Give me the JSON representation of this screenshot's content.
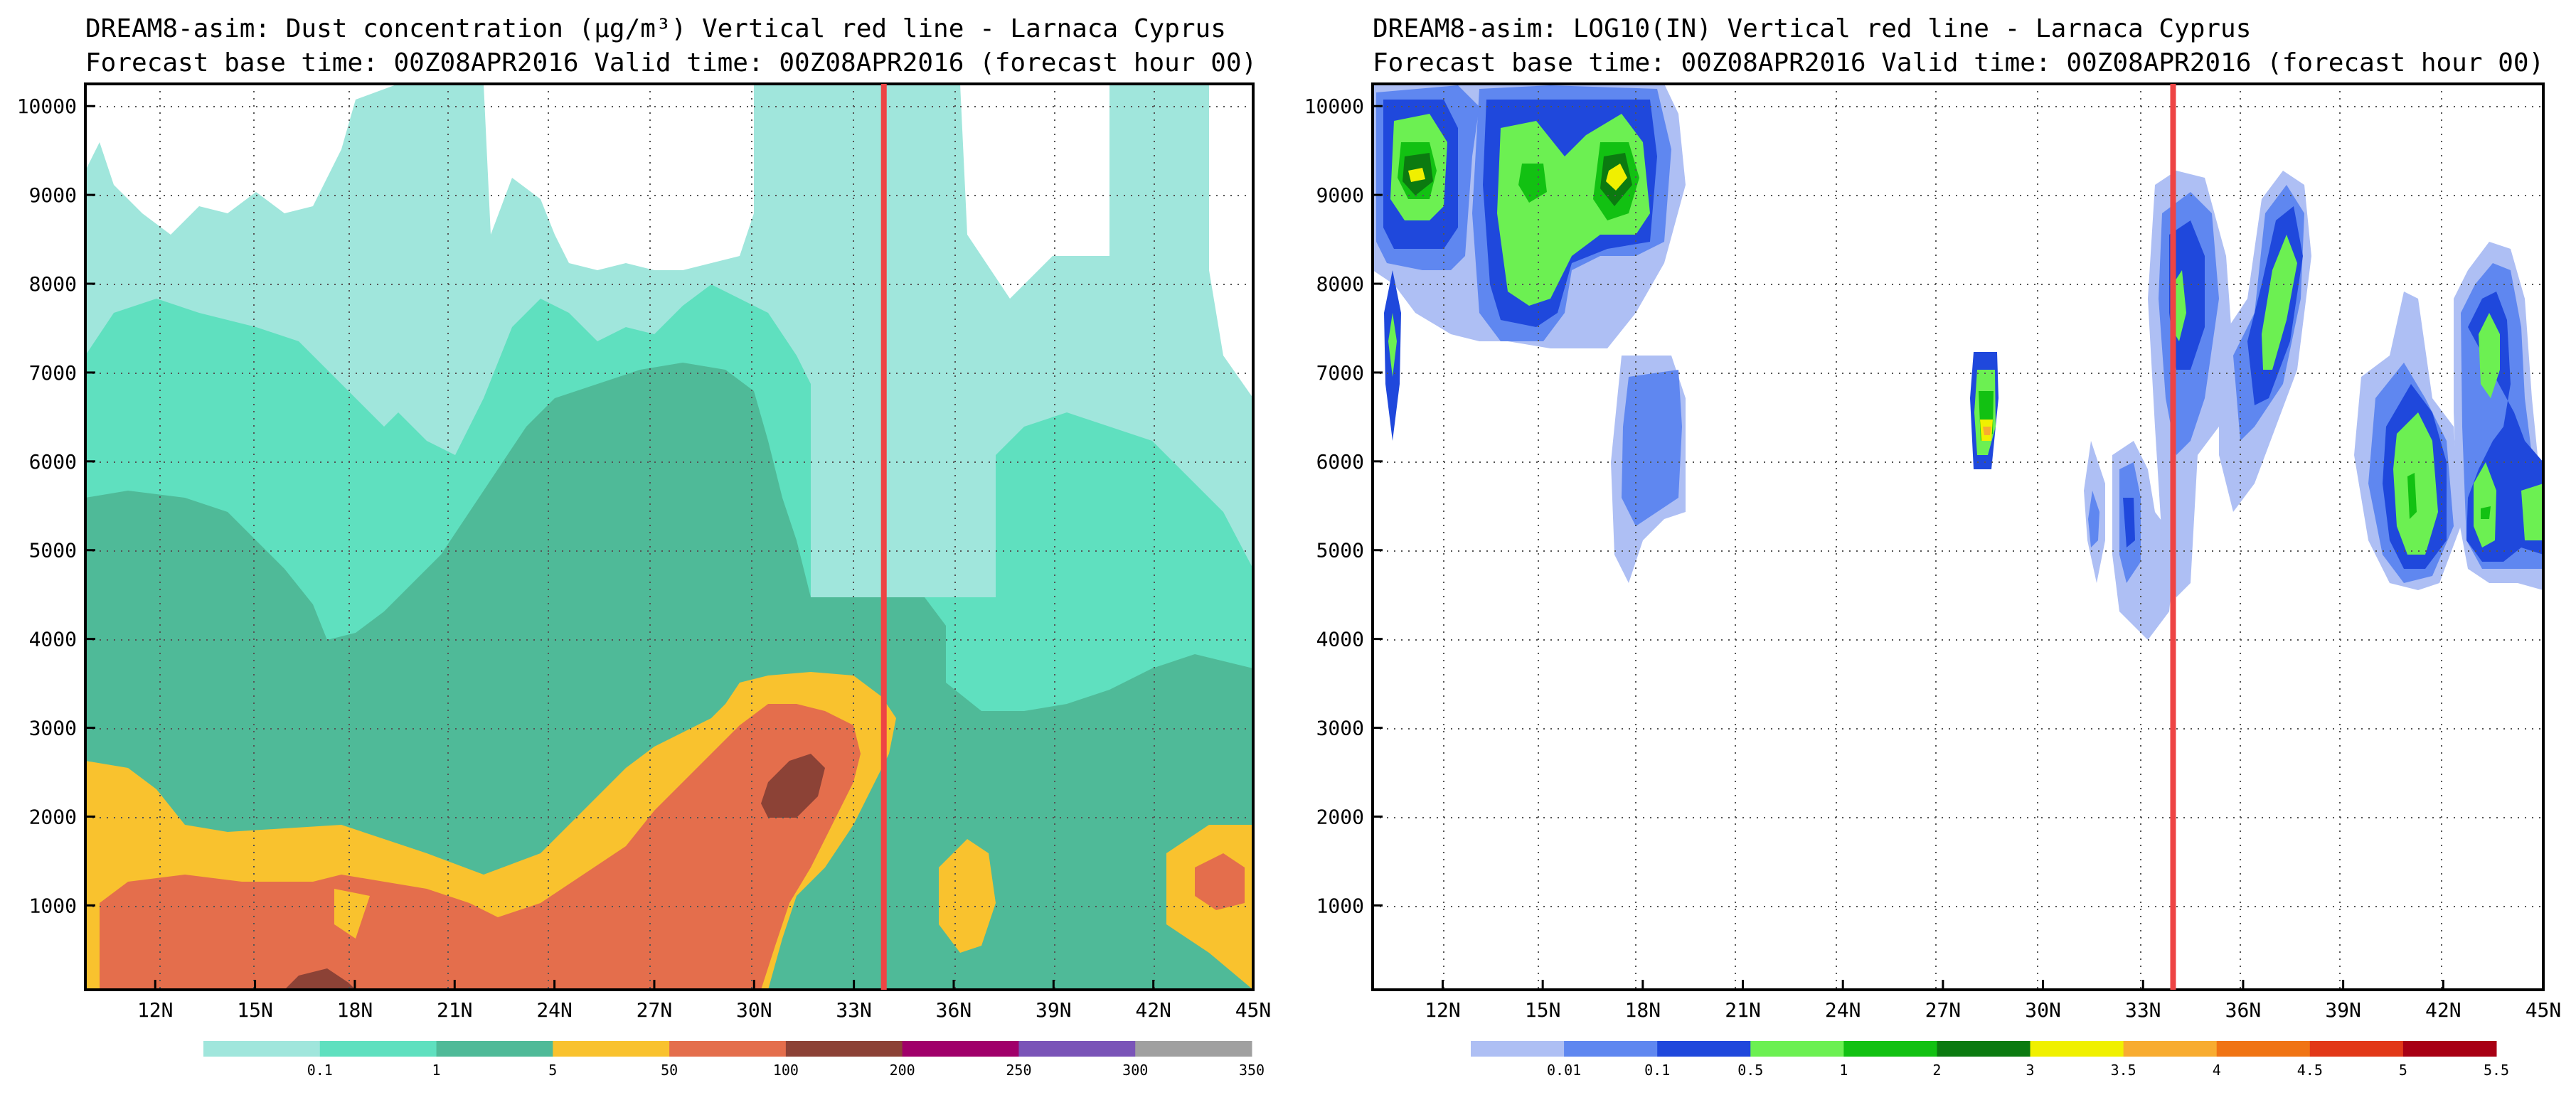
{
  "panels": [
    {
      "title_line1": "DREAM8-asim: Dust concentration (µg/m³)    Vertical red line -  Larnaca Cyprus",
      "title_line2": "Forecast base time: 00Z08APR2016  Valid time: 00Z08APR2016 (forecast hour 00)"
    },
    {
      "title_line1": "DREAM8-asim: LOG10(IN)    Vertical red line -  Larnaca Cyprus",
      "title_line2": "Forecast base time: 00Z08APR2016  Valid time: 00Z08APR2016 (forecast hour 00)"
    }
  ],
  "chart_data": [
    {
      "type": "heatmap",
      "title": "DREAM8-asim: Dust concentration (µg/m³)",
      "xlabel": "",
      "ylabel": "",
      "x_ticks": [
        "12N",
        "15N",
        "18N",
        "21N",
        "24N",
        "27N",
        "30N",
        "33N",
        "36N",
        "39N",
        "42N",
        "45N"
      ],
      "y_ticks": [
        "1000",
        "2000",
        "3000",
        "4000",
        "5000",
        "6000",
        "7000",
        "8000",
        "9000",
        "10000"
      ],
      "xlim": [
        9.9,
        45
      ],
      "ylim": [
        50,
        10250
      ],
      "marker_line": {
        "label": "Larnaca Cyprus",
        "x": 33.9,
        "color": "#ee4444"
      },
      "legend": {
        "labels": [
          "0.1",
          "1",
          "5",
          "50",
          "100",
          "200",
          "250",
          "300",
          "350"
        ],
        "colors": [
          "#a0e6dc",
          "#5fe0bf",
          "#4fba98",
          "#f9c22e",
          "#e46e4c",
          "#8c4236",
          "#a0006a",
          "#7a54b8",
          "#a0a0a0"
        ]
      },
      "grid": "dotted"
    },
    {
      "type": "heatmap",
      "title": "DREAM8-asim: LOG10(IN)",
      "xlabel": "",
      "ylabel": "",
      "x_ticks": [
        "12N",
        "15N",
        "18N",
        "21N",
        "24N",
        "27N",
        "30N",
        "33N",
        "36N",
        "39N",
        "42N",
        "45N"
      ],
      "y_ticks": [
        "1000",
        "2000",
        "3000",
        "4000",
        "5000",
        "6000",
        "7000",
        "8000",
        "9000",
        "10000"
      ],
      "xlim": [
        9.9,
        45
      ],
      "ylim": [
        50,
        10250
      ],
      "marker_line": {
        "label": "Larnaca Cyprus",
        "x": 33.9,
        "color": "#ee4444"
      },
      "legend": {
        "labels": [
          "0.01",
          "0.1",
          "0.5",
          "1",
          "2",
          "3",
          "3.5",
          "4",
          "4.5",
          "5",
          "5.5"
        ],
        "colors": [
          "#aebff4",
          "#5f87f0",
          "#1f48dc",
          "#6cf052",
          "#12c112",
          "#0b7a10",
          "#f0f000",
          "#f8ac30",
          "#f07414",
          "#e23818",
          "#a80014"
        ]
      },
      "grid": "dotted"
    }
  ]
}
